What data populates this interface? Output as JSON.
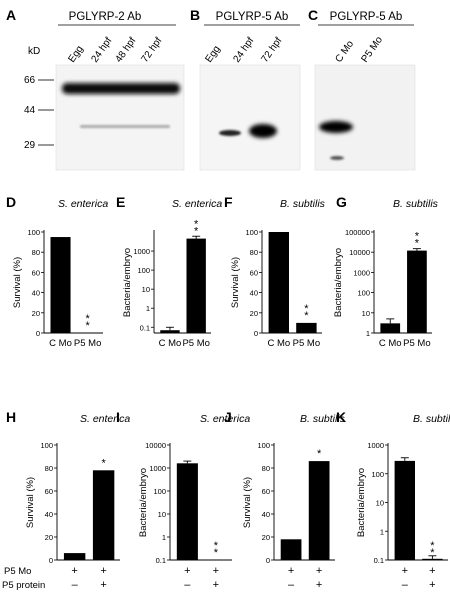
{
  "blots": {
    "mw_unit": "kD",
    "markers": [
      "66",
      "44",
      "29"
    ],
    "panels": [
      {
        "letter": "A",
        "title": "PGLYRP-2 Ab",
        "lanes": [
          "Egg",
          "24 hpf",
          "48 hpf",
          "72 hpf"
        ]
      },
      {
        "letter": "B",
        "title": "PGLYRP-5 Ab",
        "lanes": [
          "Egg",
          "24 hpf",
          "72 hpf"
        ]
      },
      {
        "letter": "C",
        "title": "PGLYRP-5 Ab",
        "lanes": [
          "C Mo",
          "P5 Mo"
        ]
      }
    ]
  },
  "conditions": {
    "p5mo_label": "P5 Mo",
    "p5protein_label": "P5 protein",
    "plus": "+",
    "minus": "–"
  },
  "chart_data": [
    {
      "letter": "D",
      "type": "bar",
      "title": "S. enterica",
      "ylabel": "Survival (%)",
      "scale": "linear",
      "ylim": [
        0,
        100
      ],
      "yticks": [
        "0",
        "20",
        "40",
        "60",
        "80",
        "100"
      ],
      "categories": [
        "C Mo",
        "P5 Mo"
      ],
      "values": [
        95,
        0
      ],
      "errors": [
        0,
        0
      ],
      "annotations": [
        "",
        "**"
      ]
    },
    {
      "letter": "E",
      "type": "bar",
      "title": "S. enterica",
      "ylabel": "Bacteria/embryo",
      "scale": "log",
      "ylim": [
        0.05,
        10000
      ],
      "yticks": [
        "0.1",
        "1",
        "10",
        "100",
        "1000"
      ],
      "categories": [
        "C Mo",
        "P5 Mo"
      ],
      "values": [
        0.07,
        4500
      ],
      "errors": [
        0.03,
        1500
      ],
      "annotations": [
        "",
        "**"
      ]
    },
    {
      "letter": "F",
      "type": "bar",
      "title": "B. subtilis",
      "ylabel": "Survival (%)",
      "scale": "linear",
      "ylim": [
        0,
        100
      ],
      "yticks": [
        "0",
        "20",
        "40",
        "60",
        "80",
        "100"
      ],
      "categories": [
        "C Mo",
        "P5 Mo"
      ],
      "values": [
        100,
        10
      ],
      "errors": [
        0,
        0
      ],
      "annotations": [
        "",
        "**"
      ]
    },
    {
      "letter": "G",
      "type": "bar",
      "title": "B. subtilis",
      "ylabel": "Bacteria/embryo",
      "scale": "log",
      "ylim": [
        1,
        100000
      ],
      "yticks": [
        "1",
        "10",
        "100",
        "1000",
        "10000",
        "100000"
      ],
      "categories": [
        "C Mo",
        "P5 Mo"
      ],
      "values": [
        3,
        12000
      ],
      "errors": [
        2,
        3000
      ],
      "annotations": [
        "",
        "**"
      ]
    },
    {
      "letter": "H",
      "type": "bar",
      "title": "S. enterica",
      "ylabel": "Survival (%)",
      "scale": "linear",
      "ylim": [
        0,
        100
      ],
      "yticks": [
        "0",
        "20",
        "40",
        "60",
        "80",
        "100"
      ],
      "conditions": [
        {
          "p5mo": "+",
          "protein": "–"
        },
        {
          "p5mo": "+",
          "protein": "+"
        }
      ],
      "values": [
        6,
        78
      ],
      "errors": [
        0,
        0
      ],
      "annotations": [
        "",
        "*"
      ]
    },
    {
      "letter": "I",
      "type": "bar",
      "title": "S. enterica",
      "ylabel": "Bacteria/embryo",
      "scale": "log",
      "ylim": [
        0.1,
        10000
      ],
      "yticks": [
        "0.1",
        "1",
        "10",
        "100",
        "1000",
        "10000"
      ],
      "conditions": [
        {
          "p5mo": "+",
          "protein": "–"
        },
        {
          "p5mo": "+",
          "protein": "+"
        }
      ],
      "values": [
        1600,
        0.1
      ],
      "errors": [
        400,
        0
      ],
      "annotations": [
        "",
        "**"
      ]
    },
    {
      "letter": "J",
      "type": "bar",
      "title": "B. subtilis",
      "ylabel": "Survival (%)",
      "scale": "linear",
      "ylim": [
        0,
        100
      ],
      "yticks": [
        "0",
        "20",
        "40",
        "60",
        "80",
        "100"
      ],
      "conditions": [
        {
          "p5mo": "+",
          "protein": "–"
        },
        {
          "p5mo": "+",
          "protein": "+"
        }
      ],
      "values": [
        18,
        86
      ],
      "errors": [
        0,
        0
      ],
      "annotations": [
        "",
        "*"
      ]
    },
    {
      "letter": "K",
      "type": "bar",
      "title": "B. subtilis",
      "ylabel": "Bacteria/embryo",
      "scale": "log",
      "ylim": [
        0.1,
        1000
      ],
      "yticks": [
        "0.1",
        "1",
        "10",
        "100",
        "1000"
      ],
      "conditions": [
        {
          "p5mo": "+",
          "protein": "–"
        },
        {
          "p5mo": "+",
          "protein": "+"
        }
      ],
      "values": [
        280,
        0.11
      ],
      "errors": [
        80,
        0.03
      ],
      "annotations": [
        "",
        "**"
      ]
    }
  ]
}
